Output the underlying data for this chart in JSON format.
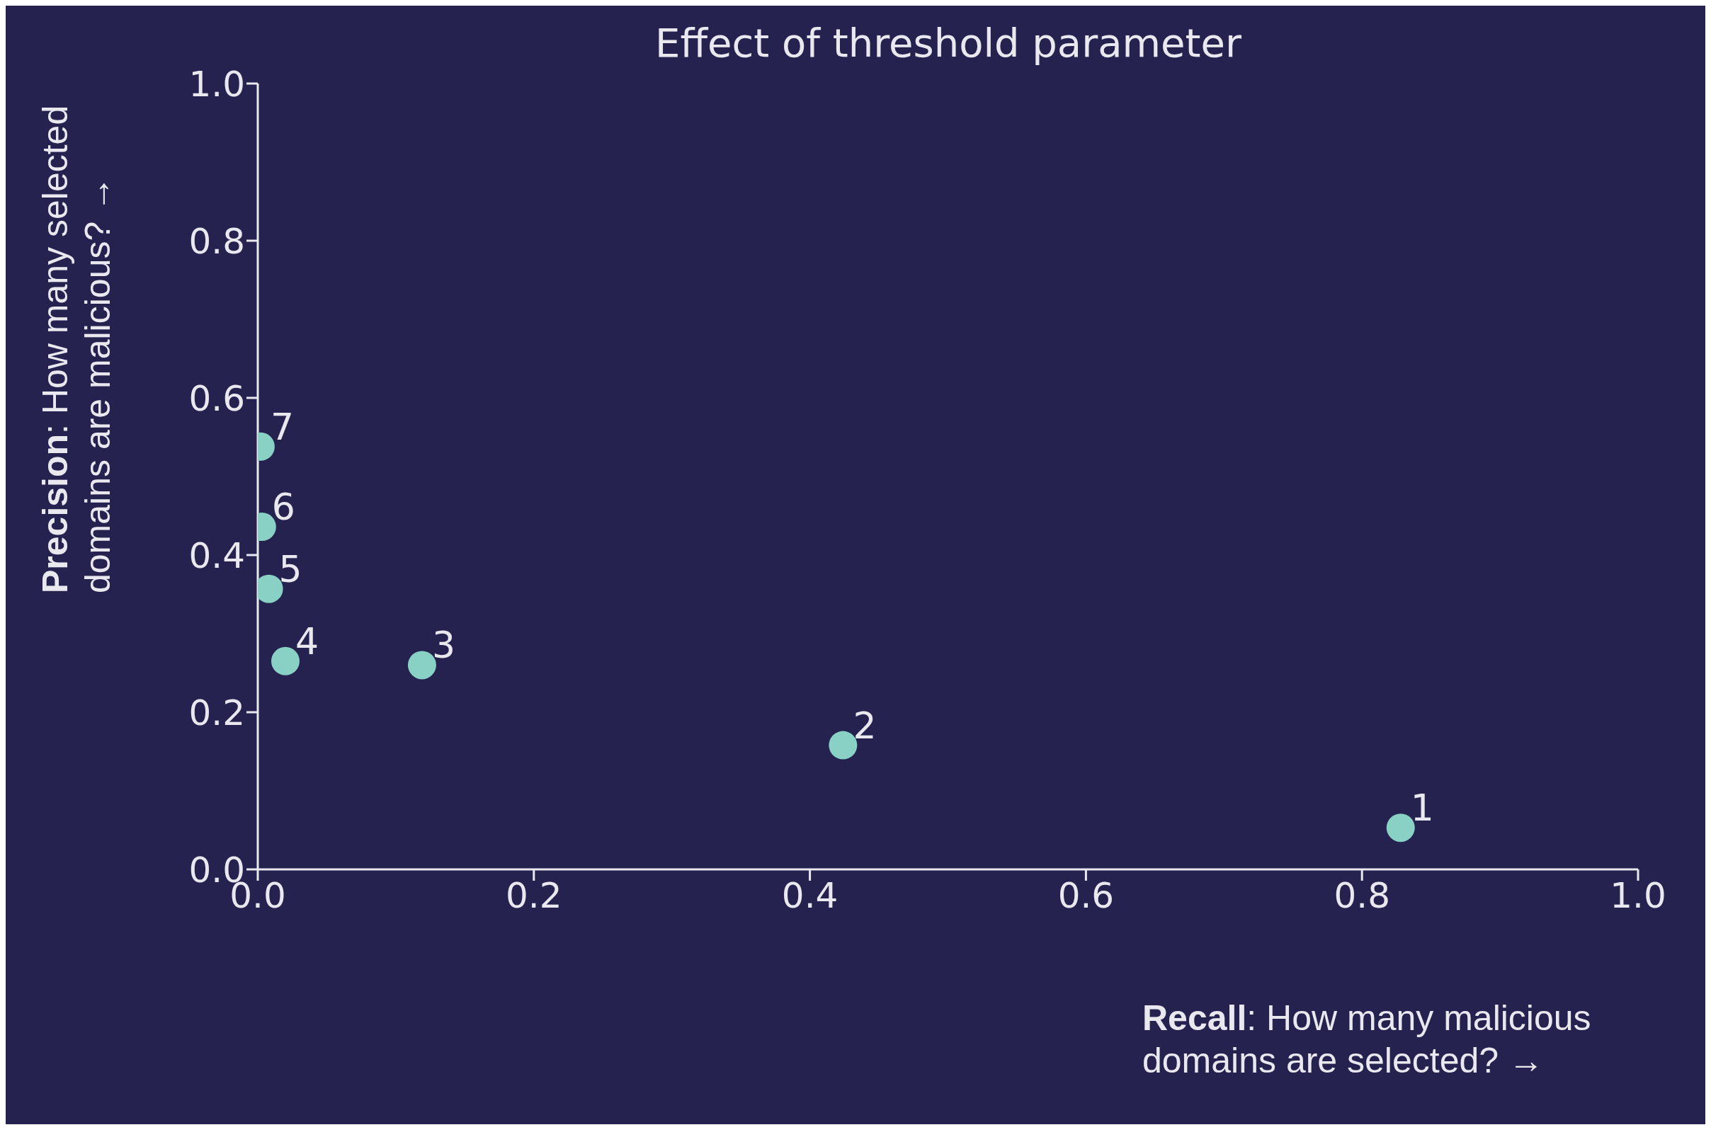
{
  "chart_data": {
    "type": "scatter",
    "title": "Effect of threshold parameter",
    "xlabel": "Recall: How many malicious domains are selected? →",
    "ylabel": "Precision: How many selected domains are malicious? →",
    "x": [
      0.828,
      0.424,
      0.119,
      0.02,
      0.008,
      0.003,
      0.002
    ],
    "series": [
      {
        "color": "#88d1c4",
        "values": [
          0.053,
          0.158,
          0.26,
          0.265,
          0.357,
          0.436,
          0.538
        ]
      }
    ],
    "annotations": [
      {
        "text": "1",
        "x": 0.828,
        "y": 0.053
      },
      {
        "text": "2",
        "x": 0.424,
        "y": 0.158
      },
      {
        "text": "3",
        "x": 0.119,
        "y": 0.26
      },
      {
        "text": "4",
        "x": 0.02,
        "y": 0.265
      },
      {
        "text": "5",
        "x": 0.008,
        "y": 0.357
      },
      {
        "text": "6",
        "x": 0.003,
        "y": 0.436
      },
      {
        "text": "7",
        "x": 0.002,
        "y": 0.538
      }
    ],
    "xlim": [
      0,
      1
    ],
    "ylim": [
      0,
      1
    ],
    "xticks": [
      {
        "value": 0,
        "label": "0.0"
      },
      0.2,
      0.4,
      0.6,
      0.8,
      {
        "value": 1,
        "label": "1.0"
      }
    ],
    "yticks": [
      {
        "value": 0,
        "label": "0.0"
      },
      0.2,
      0.4,
      0.6,
      0.8,
      {
        "value": 1,
        "label": "1.0"
      }
    ],
    "marker": "circle",
    "grid": false,
    "legend": false
  }
}
